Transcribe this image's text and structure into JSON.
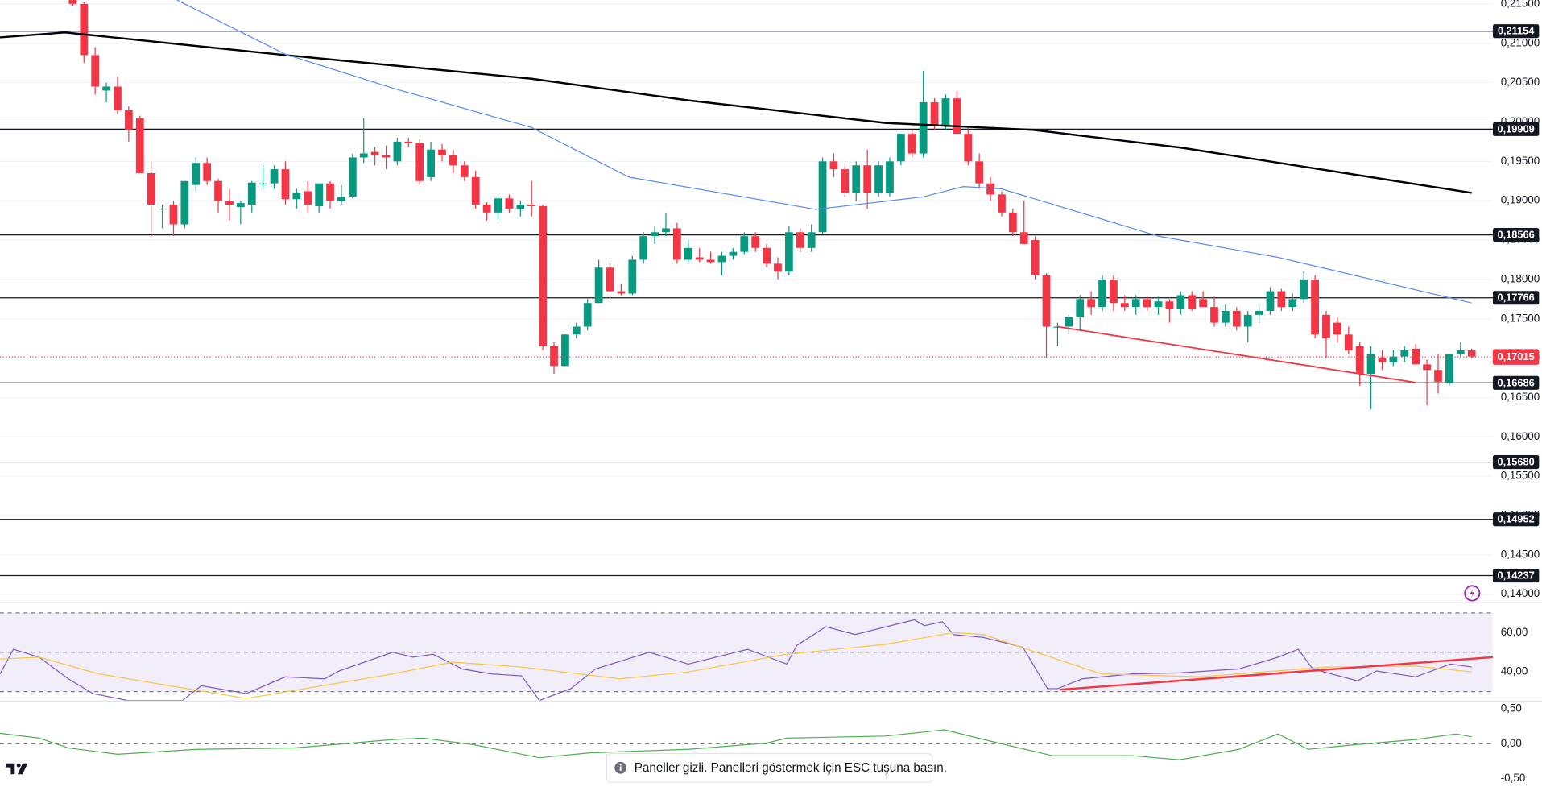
{
  "chart_data": [
    {
      "type": "candlestick",
      "up_color": "#089981",
      "down_color": "#f23645",
      "open": [
        0.216,
        0.215,
        0.2085,
        0.204,
        0.2045,
        0.2015,
        0.2005,
        0.1935,
        0.189,
        0.1895,
        0.187,
        0.192,
        0.1948,
        0.1925,
        0.19,
        0.1892,
        0.1895,
        0.1922,
        0.1922,
        0.194,
        0.1902,
        0.1912,
        0.1893,
        0.1922,
        0.19,
        0.1905,
        0.1955,
        0.1962,
        0.1958,
        0.195,
        0.1975,
        0.1973,
        0.193,
        0.1965,
        0.1958,
        0.1945,
        0.193,
        0.1895,
        0.1885,
        0.1903,
        0.189,
        0.1895,
        0.1893,
        0.1715,
        0.169,
        0.173,
        0.174,
        0.177,
        0.1815,
        0.1785,
        0.1782,
        0.1825,
        0.1855,
        0.186,
        0.1865,
        0.1825,
        0.1828,
        0.1825,
        0.1822,
        0.183,
        0.1835,
        0.1855,
        0.184,
        0.182,
        0.181,
        0.186,
        0.184,
        0.186,
        0.195,
        0.194,
        0.191,
        0.1945,
        0.191,
        0.191,
        0.195,
        0.1985,
        0.196,
        0.2025,
        0.1995,
        0.203,
        0.1985,
        0.195,
        0.1922,
        0.1908,
        0.1885,
        0.186,
        0.185,
        0.1805,
        0.174,
        0.174,
        0.1752,
        0.1775,
        0.1765,
        0.18,
        0.177,
        0.1765,
        0.1775,
        0.1765,
        0.1772,
        0.1762,
        0.178,
        0.1775,
        0.1765,
        0.1745,
        0.176,
        0.174,
        0.1755,
        0.176,
        0.1785,
        0.1765,
        0.1775,
        0.18,
        0.1755,
        0.1745,
        0.173,
        0.1715,
        0.168,
        0.17,
        0.1695,
        0.1702,
        0.1712,
        0.1692,
        0.1685,
        0.1668,
        0.1705,
        0.171
      ],
      "high": [
        0.2165,
        0.2152,
        0.2095,
        0.205,
        0.2058,
        0.202,
        0.2008,
        0.195,
        0.1895,
        0.19,
        0.1925,
        0.1955,
        0.1955,
        0.1928,
        0.1915,
        0.19,
        0.1925,
        0.1945,
        0.1945,
        0.195,
        0.1915,
        0.1925,
        0.192,
        0.1925,
        0.192,
        0.196,
        0.2005,
        0.1968,
        0.197,
        0.198,
        0.198,
        0.1978,
        0.1975,
        0.1972,
        0.1965,
        0.195,
        0.1938,
        0.1898,
        0.1905,
        0.1908,
        0.19,
        0.1925,
        0.1895,
        0.172,
        0.173,
        0.1745,
        0.1775,
        0.1825,
        0.1825,
        0.1795,
        0.183,
        0.186,
        0.1868,
        0.1885,
        0.1872,
        0.185,
        0.184,
        0.1835,
        0.1835,
        0.184,
        0.186,
        0.186,
        0.1845,
        0.1828,
        0.1868,
        0.1865,
        0.187,
        0.1955,
        0.196,
        0.1948,
        0.195,
        0.1965,
        0.195,
        0.1955,
        0.1985,
        0.199,
        0.2065,
        0.203,
        0.2035,
        0.204,
        0.1995,
        0.196,
        0.193,
        0.1912,
        0.189,
        0.19,
        0.1855,
        0.1808,
        0.1745,
        0.1755,
        0.178,
        0.1785,
        0.1805,
        0.1805,
        0.178,
        0.178,
        0.1778,
        0.1778,
        0.1775,
        0.1785,
        0.1785,
        0.1785,
        0.1778,
        0.1768,
        0.1765,
        0.176,
        0.1768,
        0.179,
        0.1788,
        0.1782,
        0.181,
        0.1805,
        0.176,
        0.1752,
        0.174,
        0.172,
        0.1715,
        0.171,
        0.171,
        0.1715,
        0.1718,
        0.1698,
        0.1705,
        0.1705,
        0.172,
        0.1712
      ],
      "low": [
        0.2148,
        0.2075,
        0.2035,
        0.2025,
        0.201,
        0.1975,
        0.1935,
        0.1855,
        0.1865,
        0.1855,
        0.1865,
        0.1912,
        0.192,
        0.1885,
        0.1875,
        0.187,
        0.1885,
        0.1915,
        0.1915,
        0.1895,
        0.189,
        0.1885,
        0.1885,
        0.189,
        0.1895,
        0.1903,
        0.1948,
        0.1945,
        0.194,
        0.1945,
        0.1968,
        0.192,
        0.1925,
        0.195,
        0.1935,
        0.1925,
        0.189,
        0.1875,
        0.1875,
        0.1885,
        0.188,
        0.188,
        0.171,
        0.168,
        0.1695,
        0.1725,
        0.1735,
        0.177,
        0.1775,
        0.178,
        0.178,
        0.182,
        0.1845,
        0.1855,
        0.182,
        0.1822,
        0.1822,
        0.182,
        0.1805,
        0.1825,
        0.1832,
        0.1835,
        0.1815,
        0.18,
        0.1805,
        0.1835,
        0.1835,
        0.1858,
        0.193,
        0.1905,
        0.19,
        0.189,
        0.1905,
        0.1905,
        0.1945,
        0.1955,
        0.1955,
        0.199,
        0.199,
        0.1985,
        0.1945,
        0.1915,
        0.19,
        0.188,
        0.1855,
        0.1845,
        0.18,
        0.17,
        0.1715,
        0.173,
        0.1735,
        0.1755,
        0.176,
        0.176,
        0.176,
        0.1755,
        0.176,
        0.1755,
        0.1745,
        0.1755,
        0.176,
        0.1765,
        0.174,
        0.174,
        0.1735,
        0.172,
        0.1745,
        0.1755,
        0.176,
        0.176,
        0.177,
        0.1725,
        0.17,
        0.172,
        0.1705,
        0.1665,
        0.1635,
        0.1685,
        0.169,
        0.1695,
        0.1692,
        0.164,
        0.1655,
        0.1665,
        0.17,
        0.17
      ],
      "close": [
        0.215,
        0.2085,
        0.2045,
        0.2045,
        0.2015,
        0.199,
        0.1935,
        0.1895,
        0.189,
        0.187,
        0.1925,
        0.1948,
        0.1925,
        0.19,
        0.1895,
        0.1897,
        0.1923,
        0.1922,
        0.194,
        0.1902,
        0.191,
        0.1895,
        0.1922,
        0.19,
        0.1905,
        0.1955,
        0.196,
        0.1958,
        0.1955,
        0.1975,
        0.1973,
        0.1925,
        0.1965,
        0.1958,
        0.1945,
        0.193,
        0.1895,
        0.1885,
        0.1903,
        0.189,
        0.1895,
        0.1893,
        0.1715,
        0.169,
        0.173,
        0.174,
        0.177,
        0.1815,
        0.1785,
        0.1782,
        0.1825,
        0.1855,
        0.186,
        0.1865,
        0.1825,
        0.184,
        0.1825,
        0.1822,
        0.183,
        0.1835,
        0.1855,
        0.184,
        0.182,
        0.181,
        0.186,
        0.184,
        0.186,
        0.195,
        0.194,
        0.191,
        0.1945,
        0.191,
        0.1945,
        0.195,
        0.1985,
        0.196,
        0.2025,
        0.1995,
        0.203,
        0.1985,
        0.195,
        0.1922,
        0.1908,
        0.1885,
        0.186,
        0.1845,
        0.1805,
        0.174,
        0.174,
        0.1752,
        0.1775,
        0.1765,
        0.18,
        0.177,
        0.1765,
        0.1775,
        0.1765,
        0.1772,
        0.1762,
        0.178,
        0.1762,
        0.1765,
        0.1745,
        0.176,
        0.174,
        0.1755,
        0.176,
        0.1785,
        0.1765,
        0.1775,
        0.18,
        0.173,
        0.1725,
        0.173,
        0.171,
        0.168,
        0.1705,
        0.1695,
        0.1702,
        0.171,
        0.1692,
        0.1685,
        0.167,
        0.1705,
        0.171,
        0.1702
      ],
      "lines": [
        {
          "color": "#000000",
          "width": 2,
          "x": [
            -6.5,
            -0.7,
            19,
            41,
            55,
            72.6,
            85.8,
            99,
            112,
            125
          ],
          "values": [
            0.21075,
            0.21138,
            0.2085,
            0.2055,
            0.20275,
            0.19988,
            0.199,
            0.19675,
            0.19388,
            0.191
          ]
        },
        {
          "color": "#5b8def",
          "width": 1,
          "x": [
            9.3,
            19,
            28.6,
            41,
            49.7,
            66.4,
            76,
            79.6,
            83,
            97,
            107.7,
            125
          ],
          "values": [
            0.2155,
            0.2086,
            0.2043,
            0.1993,
            0.193,
            0.1889,
            0.1905,
            0.1918,
            0.1915,
            0.1855,
            0.1828,
            0.177
          ]
        },
        {
          "color": "#f23645",
          "width": 1.5,
          "x": [
            88,
            120
          ],
          "values": [
            0.174,
            0.1669
          ]
        }
      ],
      "levels": [
        {
          "value": 0.21154,
          "label": "0,21154"
        },
        {
          "value": 0.19909,
          "label": "0,19909"
        },
        {
          "value": 0.18566,
          "label": "0,18566"
        },
        {
          "value": 0.17766,
          "label": "0,17766"
        },
        {
          "value": 0.16686,
          "label": "0,16686"
        },
        {
          "value": 0.1568,
          "label": "0,15680"
        },
        {
          "value": 0.14952,
          "label": "0,14952"
        },
        {
          "value": 0.14237,
          "label": "0,14237"
        }
      ],
      "last": {
        "value": 0.17015,
        "label": "0,17015",
        "color": "#f23645"
      },
      "ylim": [
        0.14,
        0.215
      ],
      "yticks": [
        {
          "value": 0.215,
          "label": "0,21500"
        },
        {
          "value": 0.21,
          "label": "0,21000"
        },
        {
          "value": 0.205,
          "label": "0,20500"
        },
        {
          "value": 0.2,
          "label": "0,20000"
        },
        {
          "value": 0.195,
          "label": "0,19500"
        },
        {
          "value": 0.19,
          "label": "0,19000"
        },
        {
          "value": 0.185,
          "label": "0,18500"
        },
        {
          "value": 0.18,
          "label": "0,18000"
        },
        {
          "value": 0.175,
          "label": "0,17500"
        },
        {
          "value": 0.17,
          "label": "0,17000"
        },
        {
          "value": 0.165,
          "label": "0,16500"
        },
        {
          "value": 0.16,
          "label": "0,16000"
        },
        {
          "value": 0.155,
          "label": "0,15500"
        },
        {
          "value": 0.15,
          "label": "0,15000"
        },
        {
          "value": 0.145,
          "label": "0,14500"
        },
        {
          "value": 0.14,
          "label": "0,14000"
        }
      ],
      "grid": true
    },
    {
      "type": "line",
      "ylim": [
        25.5,
        75.5
      ],
      "band_color": "#7e57c2",
      "levels": [
        70,
        50,
        30
      ],
      "yticks": [
        {
          "value": 60,
          "label": "60,00"
        },
        {
          "value": 40,
          "label": "40,00"
        }
      ],
      "lines": [
        {
          "color": "#7e57c2",
          "width": 1,
          "x": [
            -6.5,
            -5.3,
            -3,
            -0.4,
            1.8,
            4.9,
            9.8,
            11.5,
            15.5,
            19,
            22.5,
            23.8,
            28.6,
            30.4,
            32.2,
            34.8,
            37.4,
            40.1,
            41.7,
            44.5,
            46.7,
            51.5,
            55,
            60.3,
            63.8,
            64.7,
            67.3,
            69.9,
            75.2,
            76.1,
            77.7,
            78.7,
            81.4,
            84.9,
            87.1,
            88,
            90.2,
            94.6,
            98.9,
            104.2,
            107.7,
            109.5,
            110.8,
            114.8,
            116.5,
            120,
            123.1,
            125
          ],
          "values": [
            39,
            51.5,
            47.5,
            36.5,
            29,
            25.5,
            25.5,
            33,
            29,
            37.5,
            36.5,
            40.5,
            50,
            47.5,
            49,
            41.5,
            39,
            38,
            25.5,
            31.5,
            41.5,
            50,
            44,
            51.5,
            44,
            53.5,
            63,
            59,
            66.5,
            63.5,
            65.5,
            59,
            57.5,
            52.5,
            31.5,
            31.5,
            36.5,
            39,
            39.5,
            41.5,
            47.5,
            51.5,
            41.5,
            35.5,
            40.5,
            37.5,
            44,
            42.5
          ]
        },
        {
          "color": "#f7c548",
          "width": 1,
          "x": [
            -6.5,
            -3,
            2.3,
            15.5,
            28.6,
            33.9,
            40.1,
            48.9,
            55,
            63.8,
            72.6,
            78.7,
            81.4,
            86.6,
            91.9,
            100.7,
            112.1,
            120,
            125
          ],
          "values": [
            46.5,
            47.5,
            39,
            26.5,
            39,
            45,
            42.5,
            36.5,
            40,
            49,
            54,
            60,
            59,
            49,
            39,
            37.5,
            42.5,
            43,
            40
          ]
        },
        {
          "color": "#f23645",
          "width": 2,
          "x": [
            88.2,
            126.9
          ],
          "values": [
            31,
            47.5
          ]
        }
      ]
    },
    {
      "type": "line",
      "ylim": [
        -0.62,
        0.62
      ],
      "levels": [
        0
      ],
      "yticks": [
        {
          "value": 0.5,
          "label": "0,50"
        },
        {
          "value": 0,
          "label": "0,00"
        },
        {
          "value": -0.5,
          "label": "-0,50"
        }
      ],
      "lines": [
        {
          "color": "#4caf50",
          "width": 1,
          "x": [
            -6.5,
            -3,
            -0.4,
            4,
            11.1,
            19.8,
            28.6,
            31.3,
            35.7,
            41.7,
            46.2,
            55,
            62,
            63.8,
            72.6,
            77.9,
            81.4,
            87.5,
            94.6,
            98.9,
            104.2,
            107.7,
            110.4,
            114.8,
            120,
            123.6,
            125
          ],
          "values": [
            0.15,
            0.08,
            -0.06,
            -0.15,
            -0.08,
            -0.06,
            0.06,
            0.08,
            -0.01,
            -0.2,
            -0.13,
            -0.08,
            0.01,
            0.08,
            0.11,
            0.2,
            0.06,
            -0.17,
            -0.17,
            -0.23,
            -0.08,
            0.14,
            -0.08,
            -0.01,
            0.06,
            0.14,
            0.1
          ]
        }
      ]
    }
  ],
  "notice": "Paneller gizli. Panelleri göstermek için ESC tuşuna basın."
}
